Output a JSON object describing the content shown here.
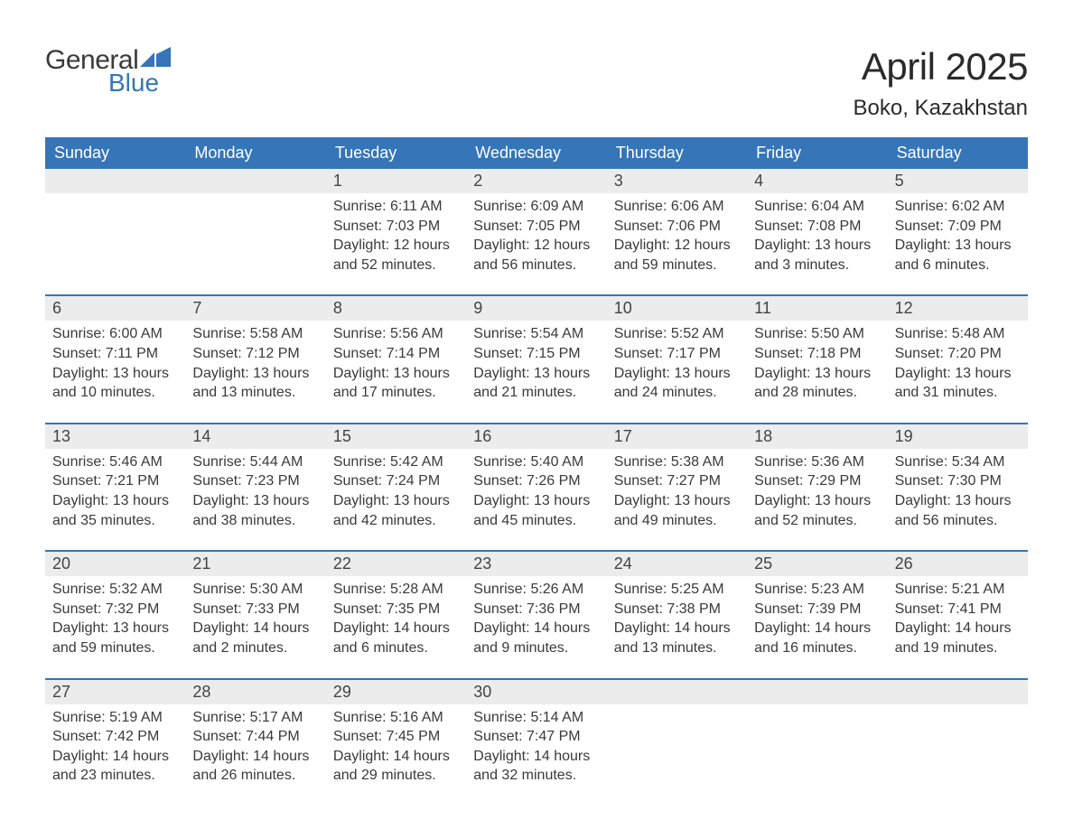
{
  "logo": {
    "text1": "General",
    "text2": "Blue",
    "mark_color": "#3575b8"
  },
  "title": "April 2025",
  "location": "Boko, Kazakhstan",
  "header_bg": "#3575b8",
  "band_bg": "#ececec",
  "labels": {
    "sunrise": "Sunrise:",
    "sunset": "Sunset:",
    "daylight": "Daylight:"
  },
  "weekdays": [
    "Sunday",
    "Monday",
    "Tuesday",
    "Wednesday",
    "Thursday",
    "Friday",
    "Saturday"
  ],
  "weeks": [
    [
      {
        "empty": true
      },
      {
        "empty": true
      },
      {
        "num": "1",
        "sunrise": "6:11 AM",
        "sunset": "7:03 PM",
        "daylight": "12 hours and 52 minutes."
      },
      {
        "num": "2",
        "sunrise": "6:09 AM",
        "sunset": "7:05 PM",
        "daylight": "12 hours and 56 minutes."
      },
      {
        "num": "3",
        "sunrise": "6:06 AM",
        "sunset": "7:06 PM",
        "daylight": "12 hours and 59 minutes."
      },
      {
        "num": "4",
        "sunrise": "6:04 AM",
        "sunset": "7:08 PM",
        "daylight": "13 hours and 3 minutes."
      },
      {
        "num": "5",
        "sunrise": "6:02 AM",
        "sunset": "7:09 PM",
        "daylight": "13 hours and 6 minutes."
      }
    ],
    [
      {
        "num": "6",
        "sunrise": "6:00 AM",
        "sunset": "7:11 PM",
        "daylight": "13 hours and 10 minutes."
      },
      {
        "num": "7",
        "sunrise": "5:58 AM",
        "sunset": "7:12 PM",
        "daylight": "13 hours and 13 minutes."
      },
      {
        "num": "8",
        "sunrise": "5:56 AM",
        "sunset": "7:14 PM",
        "daylight": "13 hours and 17 minutes."
      },
      {
        "num": "9",
        "sunrise": "5:54 AM",
        "sunset": "7:15 PM",
        "daylight": "13 hours and 21 minutes."
      },
      {
        "num": "10",
        "sunrise": "5:52 AM",
        "sunset": "7:17 PM",
        "daylight": "13 hours and 24 minutes."
      },
      {
        "num": "11",
        "sunrise": "5:50 AM",
        "sunset": "7:18 PM",
        "daylight": "13 hours and 28 minutes."
      },
      {
        "num": "12",
        "sunrise": "5:48 AM",
        "sunset": "7:20 PM",
        "daylight": "13 hours and 31 minutes."
      }
    ],
    [
      {
        "num": "13",
        "sunrise": "5:46 AM",
        "sunset": "7:21 PM",
        "daylight": "13 hours and 35 minutes."
      },
      {
        "num": "14",
        "sunrise": "5:44 AM",
        "sunset": "7:23 PM",
        "daylight": "13 hours and 38 minutes."
      },
      {
        "num": "15",
        "sunrise": "5:42 AM",
        "sunset": "7:24 PM",
        "daylight": "13 hours and 42 minutes."
      },
      {
        "num": "16",
        "sunrise": "5:40 AM",
        "sunset": "7:26 PM",
        "daylight": "13 hours and 45 minutes."
      },
      {
        "num": "17",
        "sunrise": "5:38 AM",
        "sunset": "7:27 PM",
        "daylight": "13 hours and 49 minutes."
      },
      {
        "num": "18",
        "sunrise": "5:36 AM",
        "sunset": "7:29 PM",
        "daylight": "13 hours and 52 minutes."
      },
      {
        "num": "19",
        "sunrise": "5:34 AM",
        "sunset": "7:30 PM",
        "daylight": "13 hours and 56 minutes."
      }
    ],
    [
      {
        "num": "20",
        "sunrise": "5:32 AM",
        "sunset": "7:32 PM",
        "daylight": "13 hours and 59 minutes."
      },
      {
        "num": "21",
        "sunrise": "5:30 AM",
        "sunset": "7:33 PM",
        "daylight": "14 hours and 2 minutes."
      },
      {
        "num": "22",
        "sunrise": "5:28 AM",
        "sunset": "7:35 PM",
        "daylight": "14 hours and 6 minutes."
      },
      {
        "num": "23",
        "sunrise": "5:26 AM",
        "sunset": "7:36 PM",
        "daylight": "14 hours and 9 minutes."
      },
      {
        "num": "24",
        "sunrise": "5:25 AM",
        "sunset": "7:38 PM",
        "daylight": "14 hours and 13 minutes."
      },
      {
        "num": "25",
        "sunrise": "5:23 AM",
        "sunset": "7:39 PM",
        "daylight": "14 hours and 16 minutes."
      },
      {
        "num": "26",
        "sunrise": "5:21 AM",
        "sunset": "7:41 PM",
        "daylight": "14 hours and 19 minutes."
      }
    ],
    [
      {
        "num": "27",
        "sunrise": "5:19 AM",
        "sunset": "7:42 PM",
        "daylight": "14 hours and 23 minutes."
      },
      {
        "num": "28",
        "sunrise": "5:17 AM",
        "sunset": "7:44 PM",
        "daylight": "14 hours and 26 minutes."
      },
      {
        "num": "29",
        "sunrise": "5:16 AM",
        "sunset": "7:45 PM",
        "daylight": "14 hours and 29 minutes."
      },
      {
        "num": "30",
        "sunrise": "5:14 AM",
        "sunset": "7:47 PM",
        "daylight": "14 hours and 32 minutes."
      },
      {
        "empty": true
      },
      {
        "empty": true
      },
      {
        "empty": true
      }
    ]
  ]
}
